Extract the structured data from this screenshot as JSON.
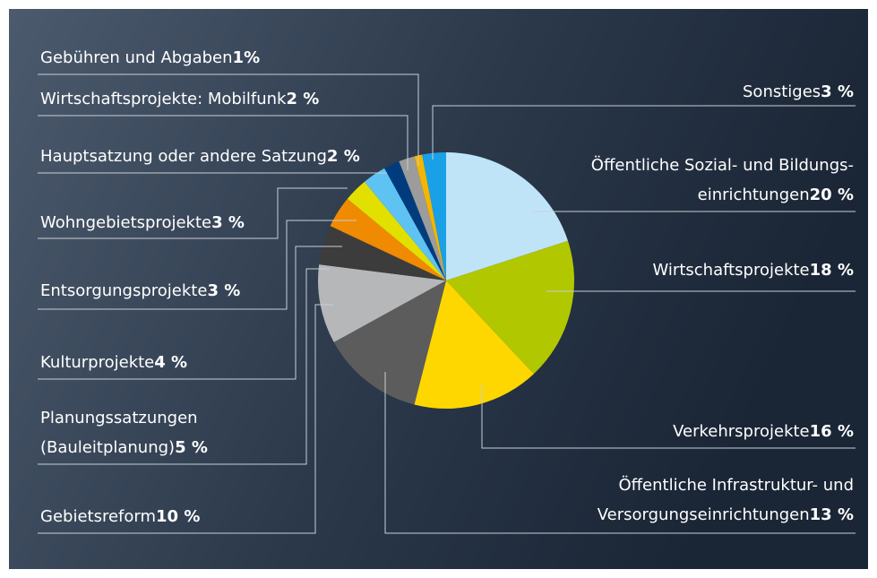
{
  "chart_data": {
    "type": "pie",
    "categories": [
      [
        "Öffentliche Sozial- und Bildungs-",
        "einrichtungen"
      ],
      [
        "Wirtschaftsprojekte"
      ],
      [
        "Verkehrsprojekte"
      ],
      [
        "Öffentliche Infrastruktur- und",
        "Versorgungseinrichtungen"
      ],
      [
        "Gebietsreform"
      ],
      [
        "Planungssatzungen",
        "(Bauleitplanung)"
      ],
      [
        "Kulturprojekte"
      ],
      [
        "Entsorgungsprojekte"
      ],
      [
        "Wohngebietsprojekte"
      ],
      [
        "Hauptsatzung oder andere Satzung"
      ],
      [
        "Wirtschaftsprojekte: Mobilfunk"
      ],
      [
        "Gebühren und Abgaben"
      ],
      [
        "Sonstiges"
      ]
    ],
    "values": [
      20,
      18,
      16,
      13,
      10,
      5,
      4,
      3,
      3,
      2,
      2,
      1,
      3
    ],
    "value_labels": [
      "20 %",
      "18 %",
      "16 %",
      "13 %",
      "10 %",
      "5 %",
      "4 %",
      "3 %",
      "3 %",
      "2 %",
      "2 %",
      "1%",
      "3 %"
    ],
    "colors": [
      "#bfe4f8",
      "#b1c700",
      "#ffd700",
      "#5c5c5c",
      "#b6b7b9",
      "#3c3c3c",
      "#f08a00",
      "#e2e000",
      "#5ec3f2",
      "#003c7d",
      "#9c9c9c",
      "#f2b600",
      "#1aa0e6"
    ]
  }
}
